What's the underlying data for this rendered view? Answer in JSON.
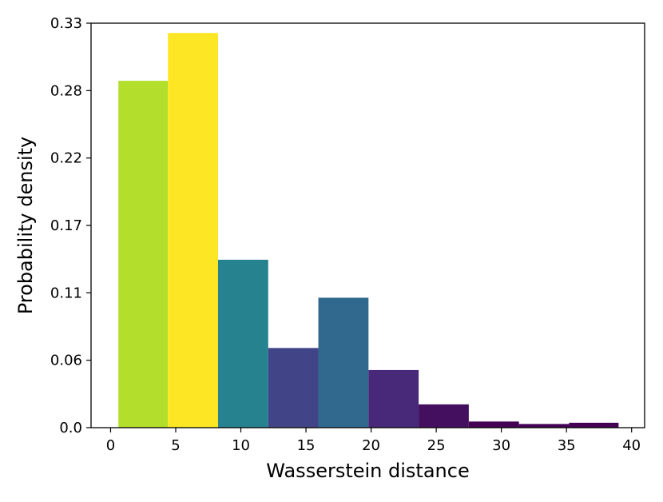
{
  "chart_data": {
    "type": "bar",
    "title": "",
    "xlabel": "Wasserstein distance",
    "ylabel": "Probability density",
    "xlim": [
      -1.5,
      41
    ],
    "ylim": [
      0,
      0.33
    ],
    "xticks": [
      0,
      5,
      10,
      15,
      20,
      25,
      30,
      35,
      40
    ],
    "xtick_labels": [
      "0",
      "5",
      "10",
      "15",
      "20",
      "25",
      "30",
      "35",
      "40"
    ],
    "yticks": [
      0.0,
      0.055,
      0.11,
      0.165,
      0.22,
      0.275,
      0.33
    ],
    "ytick_labels": [
      "0.0",
      "0.06",
      "0.11",
      "0.17",
      "0.22",
      "0.28",
      "0.33"
    ],
    "grid": false,
    "bins": [
      {
        "x0": 0.6,
        "x1": 4.4,
        "value": 0.283,
        "color": "#b3de2c"
      },
      {
        "x0": 4.4,
        "x1": 8.25,
        "value": 0.322,
        "color": "#fde725"
      },
      {
        "x0": 8.25,
        "x1": 12.1,
        "value": 0.137,
        "color": "#26828e"
      },
      {
        "x0": 12.1,
        "x1": 15.95,
        "value": 0.065,
        "color": "#414487"
      },
      {
        "x0": 15.95,
        "x1": 19.8,
        "value": 0.106,
        "color": "#31688e"
      },
      {
        "x0": 19.8,
        "x1": 23.65,
        "value": 0.047,
        "color": "#482878"
      },
      {
        "x0": 23.65,
        "x1": 27.5,
        "value": 0.019,
        "color": "#440f5f"
      },
      {
        "x0": 27.5,
        "x1": 31.35,
        "value": 0.005,
        "color": "#440154"
      },
      {
        "x0": 31.35,
        "x1": 35.2,
        "value": 0.003,
        "color": "#440154"
      },
      {
        "x0": 35.2,
        "x1": 39.0,
        "value": 0.004,
        "color": "#440154"
      }
    ]
  }
}
